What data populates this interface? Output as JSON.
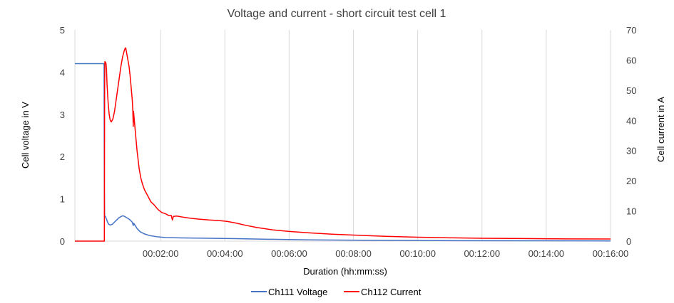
{
  "chart_data": {
    "type": "line",
    "title": "Voltage and current - short circuit test cell 1",
    "xlabel": "Duration (hh:mm:ss)",
    "ylabel_left": "Cell voltage in V",
    "ylabel_right": "Cell current in A",
    "x_unit": "seconds",
    "xlim": [
      0,
      960
    ],
    "ylim_left": [
      0,
      5
    ],
    "ylim_right": [
      0,
      70
    ],
    "x_ticks": [
      {
        "value": 120,
        "label": "00:02:00"
      },
      {
        "value": 240,
        "label": "00:04:00"
      },
      {
        "value": 360,
        "label": "00:06:00"
      },
      {
        "value": 480,
        "label": "00:08:00"
      },
      {
        "value": 600,
        "label": "00:10:00"
      },
      {
        "value": 720,
        "label": "00:12:00"
      },
      {
        "value": 840,
        "label": "00:14:00"
      },
      {
        "value": 960,
        "label": "00:16:00"
      }
    ],
    "y_left_ticks": [
      "0",
      "1",
      "2",
      "3",
      "4",
      "5"
    ],
    "y_right_ticks": [
      "0",
      "10",
      "20",
      "30",
      "40",
      "50",
      "60",
      "70"
    ],
    "grid": "vertical",
    "legend_position": "bottom",
    "series": [
      {
        "name": "Ch111 Voltage",
        "axis": "left",
        "color": "#4472C4",
        "points": [
          [
            -40,
            4.2
          ],
          [
            14,
            4.2
          ],
          [
            14.5,
            4.2
          ],
          [
            15,
            1.2
          ],
          [
            15.5,
            0.6
          ],
          [
            17,
            0.58
          ],
          [
            19,
            0.52
          ],
          [
            21,
            0.45
          ],
          [
            23,
            0.4
          ],
          [
            26,
            0.38
          ],
          [
            30,
            0.4
          ],
          [
            34,
            0.45
          ],
          [
            38,
            0.5
          ],
          [
            42,
            0.55
          ],
          [
            46,
            0.58
          ],
          [
            49,
            0.6
          ],
          [
            52,
            0.59
          ],
          [
            56,
            0.56
          ],
          [
            60,
            0.53
          ],
          [
            64,
            0.49
          ],
          [
            67,
            0.45
          ],
          [
            69,
            0.37
          ],
          [
            70,
            0.42
          ],
          [
            72,
            0.38
          ],
          [
            76,
            0.3
          ],
          [
            82,
            0.22
          ],
          [
            90,
            0.17
          ],
          [
            100,
            0.13
          ],
          [
            115,
            0.1
          ],
          [
            130,
            0.085
          ],
          [
            160,
            0.075
          ],
          [
            200,
            0.07
          ],
          [
            260,
            0.06
          ],
          [
            320,
            0.045
          ],
          [
            400,
            0.03
          ],
          [
            500,
            0.02
          ],
          [
            640,
            0.012
          ],
          [
            800,
            0.008
          ],
          [
            960,
            0.005
          ]
        ]
      },
      {
        "name": "Ch112 Current",
        "axis": "right",
        "color": "#FF0000",
        "points": [
          [
            -40,
            0
          ],
          [
            14,
            0
          ],
          [
            15,
            0
          ],
          [
            15.5,
            50
          ],
          [
            16,
            59.5
          ],
          [
            18,
            59
          ],
          [
            19,
            57
          ],
          [
            20,
            52
          ],
          [
            22,
            46
          ],
          [
            24,
            42
          ],
          [
            26,
            40
          ],
          [
            28,
            39.5
          ],
          [
            31,
            40.5
          ],
          [
            34,
            43
          ],
          [
            38,
            48
          ],
          [
            42,
            53
          ],
          [
            46,
            58
          ],
          [
            49,
            61
          ],
          [
            52,
            63
          ],
          [
            54,
            64
          ],
          [
            55,
            64
          ],
          [
            57,
            62
          ],
          [
            59,
            60
          ],
          [
            61,
            58
          ],
          [
            63,
            55
          ],
          [
            65,
            51
          ],
          [
            67,
            47
          ],
          [
            68,
            44
          ],
          [
            69,
            38
          ],
          [
            69.5,
            43
          ],
          [
            70,
            42
          ],
          [
            72,
            38
          ],
          [
            74,
            34
          ],
          [
            76,
            30
          ],
          [
            78,
            27
          ],
          [
            80,
            24
          ],
          [
            83,
            21
          ],
          [
            86,
            19
          ],
          [
            90,
            17
          ],
          [
            96,
            15
          ],
          [
            102,
            13
          ],
          [
            108,
            12
          ],
          [
            115,
            10.5
          ],
          [
            122,
            9.5
          ],
          [
            130,
            9
          ],
          [
            135,
            8.5
          ],
          [
            140,
            8.5
          ],
          [
            142,
            7
          ],
          [
            144,
            8.2
          ],
          [
            150,
            8.3
          ],
          [
            160,
            8
          ],
          [
            175,
            7.6
          ],
          [
            190,
            7.3
          ],
          [
            210,
            7
          ],
          [
            230,
            6.8
          ],
          [
            245,
            6.5
          ],
          [
            260,
            6
          ],
          [
            280,
            5.2
          ],
          [
            300,
            4.5
          ],
          [
            330,
            3.7
          ],
          [
            360,
            3.2
          ],
          [
            400,
            2.7
          ],
          [
            440,
            2.3
          ],
          [
            480,
            2
          ],
          [
            540,
            1.6
          ],
          [
            600,
            1.3
          ],
          [
            660,
            1.1
          ],
          [
            720,
            0.95
          ],
          [
            800,
            0.85
          ],
          [
            880,
            0.75
          ],
          [
            960,
            0.7
          ]
        ]
      }
    ]
  }
}
